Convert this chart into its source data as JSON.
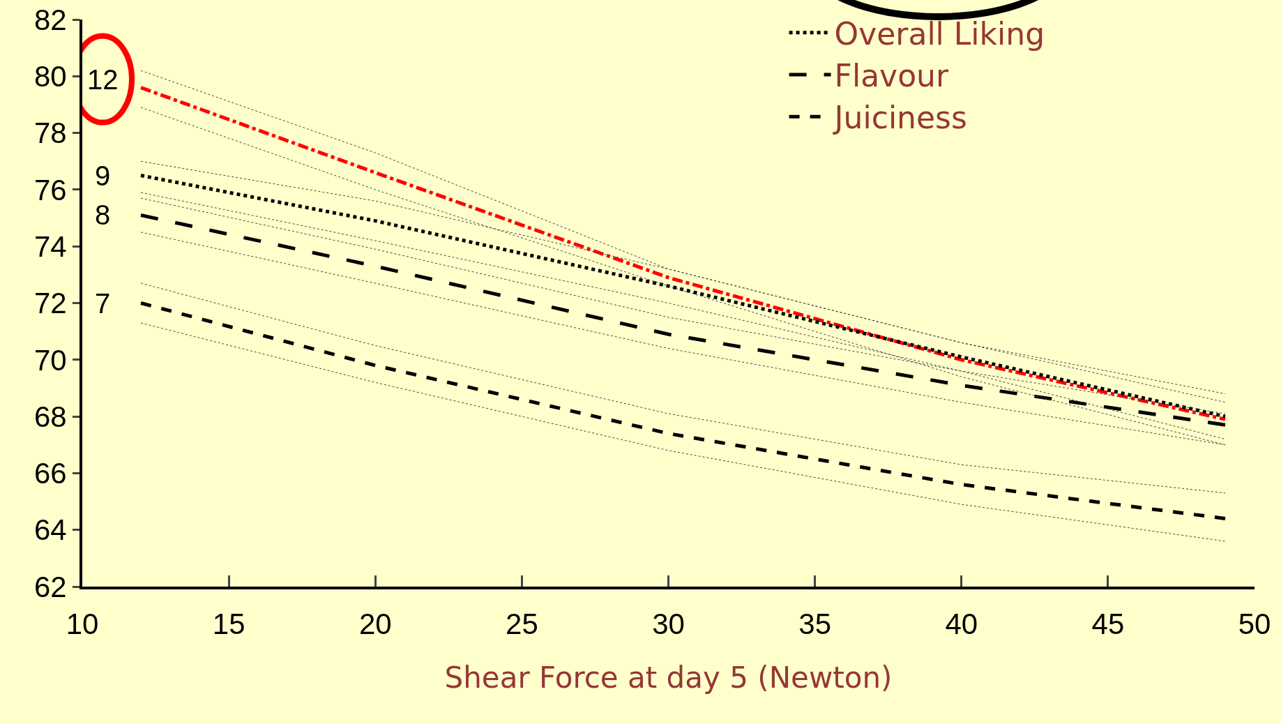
{
  "chart_data": {
    "type": "line",
    "xlabel": "Shear Force at day 5 (Newton)",
    "x": [
      12,
      20,
      30,
      40,
      49
    ],
    "xlim": [
      10,
      50
    ],
    "xticks": [
      10,
      15,
      20,
      25,
      30,
      35,
      40,
      45,
      50
    ],
    "ylim": [
      62,
      82
    ],
    "yticks": [
      62,
      64,
      66,
      68,
      70,
      72,
      74,
      76,
      78,
      80,
      82
    ],
    "grid": false,
    "legend": "top right",
    "marker": "none",
    "series": [
      {
        "color": "#ff0000",
        "line_style": "dashdot",
        "values": [
          79.6,
          76.6,
          72.9,
          70.0,
          67.9
        ]
      },
      {
        "name": "Overall Liking",
        "color": "#000000",
        "line_style": "dotted",
        "values": [
          76.5,
          74.9,
          72.6,
          70.1,
          68.0
        ]
      },
      {
        "name": "Flavour",
        "color": "#000000",
        "line_style": "longdash",
        "values": [
          75.1,
          73.3,
          70.9,
          69.1,
          67.7
        ]
      },
      {
        "name": "Juiciness",
        "color": "#000000",
        "line_style": "dashed",
        "values": [
          72.0,
          69.8,
          67.4,
          65.6,
          64.4
        ]
      },
      {
        "color": "#444444",
        "line_style": "dotted",
        "values": [
          80.2,
          77.3,
          73.2,
          70.6,
          68.8
        ]
      },
      {
        "color": "#444444",
        "line_style": "dotted",
        "values": [
          78.9,
          76.0,
          72.6,
          69.4,
          67.0
        ]
      },
      {
        "color": "#444444",
        "line_style": "dotted",
        "values": [
          77.0,
          75.6,
          73.2,
          70.6,
          68.5
        ]
      },
      {
        "color": "#444444",
        "line_style": "dotted",
        "values": [
          75.9,
          74.2,
          72.0,
          69.6,
          67.2
        ]
      },
      {
        "color": "#444444",
        "line_style": "dotted",
        "values": [
          75.7,
          73.9,
          71.5,
          69.6,
          68.1
        ]
      },
      {
        "color": "#444444",
        "line_style": "dotted",
        "values": [
          74.5,
          72.7,
          70.4,
          68.5,
          67.0
        ]
      },
      {
        "color": "#444444",
        "line_style": "dotted",
        "values": [
          72.7,
          70.5,
          68.1,
          66.3,
          65.3
        ]
      },
      {
        "color": "#444444",
        "line_style": "dotted",
        "values": [
          71.3,
          69.2,
          66.8,
          64.9,
          63.6
        ]
      }
    ],
    "annotations": [
      "12",
      "9",
      "8",
      "7"
    ]
  }
}
